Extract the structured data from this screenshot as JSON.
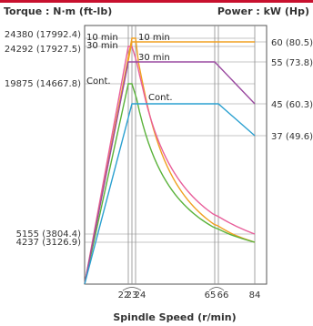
{
  "chart_data": {
    "type": "line",
    "ylabel_left": "Torque : N·m (ft-lb)",
    "ylabel_right": "Power : kW (Hp)",
    "xlabel": "Spindle Speed (r/min)",
    "x_ticks": [
      "22",
      "23",
      "24",
      "65",
      "66",
      "84"
    ],
    "torque_ticks": [
      "24380 (17992.4)",
      "24292 (17927.5)",
      "19875 (14667.8)",
      "5155 (3804.4)",
      "4237 (3126.9)"
    ],
    "power_ticks": [
      "60 (80.5)",
      "55 (73.8)",
      "45 (60.3)",
      "37 (49.6)"
    ],
    "torque_series_labels": [
      "10 min",
      "30 min",
      "Cont."
    ],
    "power_series_labels": [
      "10 min",
      "30 min",
      "Cont."
    ],
    "grid": false,
    "colors": {
      "torque_10min": "#f0a020",
      "torque_30min": "#e85e9a",
      "torque_cont": "#5ab23a",
      "power_10min": "#f0a020",
      "power_30min": "#9a4aa0",
      "power_cont": "#2aa0d0",
      "accent": "#c8102e",
      "guide": "#8c8c8c"
    },
    "torque_series": [
      {
        "name": "10 min",
        "x": [
          0,
          23,
          24,
          84
        ],
        "y": [
          0,
          24380,
          24380,
          4237
        ]
      },
      {
        "name": "30 min",
        "x": [
          0,
          22,
          23,
          84
        ],
        "y": [
          0,
          24292,
          24292,
          5155
        ]
      },
      {
        "name": "Cont.",
        "x": [
          0,
          22,
          23,
          84
        ],
        "y": [
          0,
          19875,
          19875,
          4237
        ]
      }
    ],
    "power_series": [
      {
        "name": "10 min",
        "x": [
          0,
          23,
          24,
          66,
          84
        ],
        "y": [
          0,
          60,
          60,
          60,
          60
        ]
      },
      {
        "name": "30 min",
        "x": [
          0,
          22,
          24,
          65,
          84
        ],
        "y": [
          0,
          55,
          55,
          55,
          45
        ]
      },
      {
        "name": "Cont.",
        "x": [
          0,
          23,
          65,
          66,
          84
        ],
        "y": [
          0,
          45,
          45,
          45,
          37
        ]
      }
    ]
  }
}
